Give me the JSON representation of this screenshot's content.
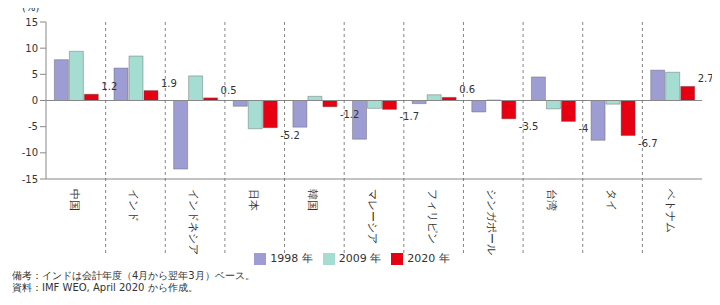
{
  "chart_data": {
    "type": "bar",
    "y_label": "(%)",
    "categories": [
      "中国",
      "インド",
      "インドネシア",
      "日本",
      "韓国",
      "マレーシア",
      "フィリピン",
      "シンガポール",
      "台湾",
      "タイ",
      "ベトナム"
    ],
    "series": [
      {
        "name": "1998 年",
        "color": "#9d9dd4",
        "values": [
          7.8,
          6.2,
          -13.1,
          -1.1,
          -5.1,
          -7.4,
          -0.6,
          -2.2,
          4.5,
          -7.6,
          5.8
        ]
      },
      {
        "name": "2009 年",
        "color": "#a6ddd2",
        "values": [
          9.4,
          8.5,
          4.7,
          -5.4,
          0.8,
          -1.5,
          1.1,
          0.1,
          -1.6,
          -0.7,
          5.4
        ]
      },
      {
        "name": "2020 年",
        "color": "#e60012",
        "values": [
          1.2,
          1.9,
          0.5,
          -5.2,
          -1.2,
          -1.7,
          0.6,
          -3.5,
          -4.0,
          -6.7,
          2.7
        ],
        "data_labels": true
      }
    ],
    "ylim": [
      -15,
      15
    ],
    "yticks": [
      -15,
      -10,
      -5,
      0,
      5,
      10,
      15
    ],
    "legend": "bottom",
    "notes": [
      "備考：インドは会計年度（4月から翌年3月）ベース。",
      "資料：IMF WEO, April 2020 から作成。"
    ]
  }
}
